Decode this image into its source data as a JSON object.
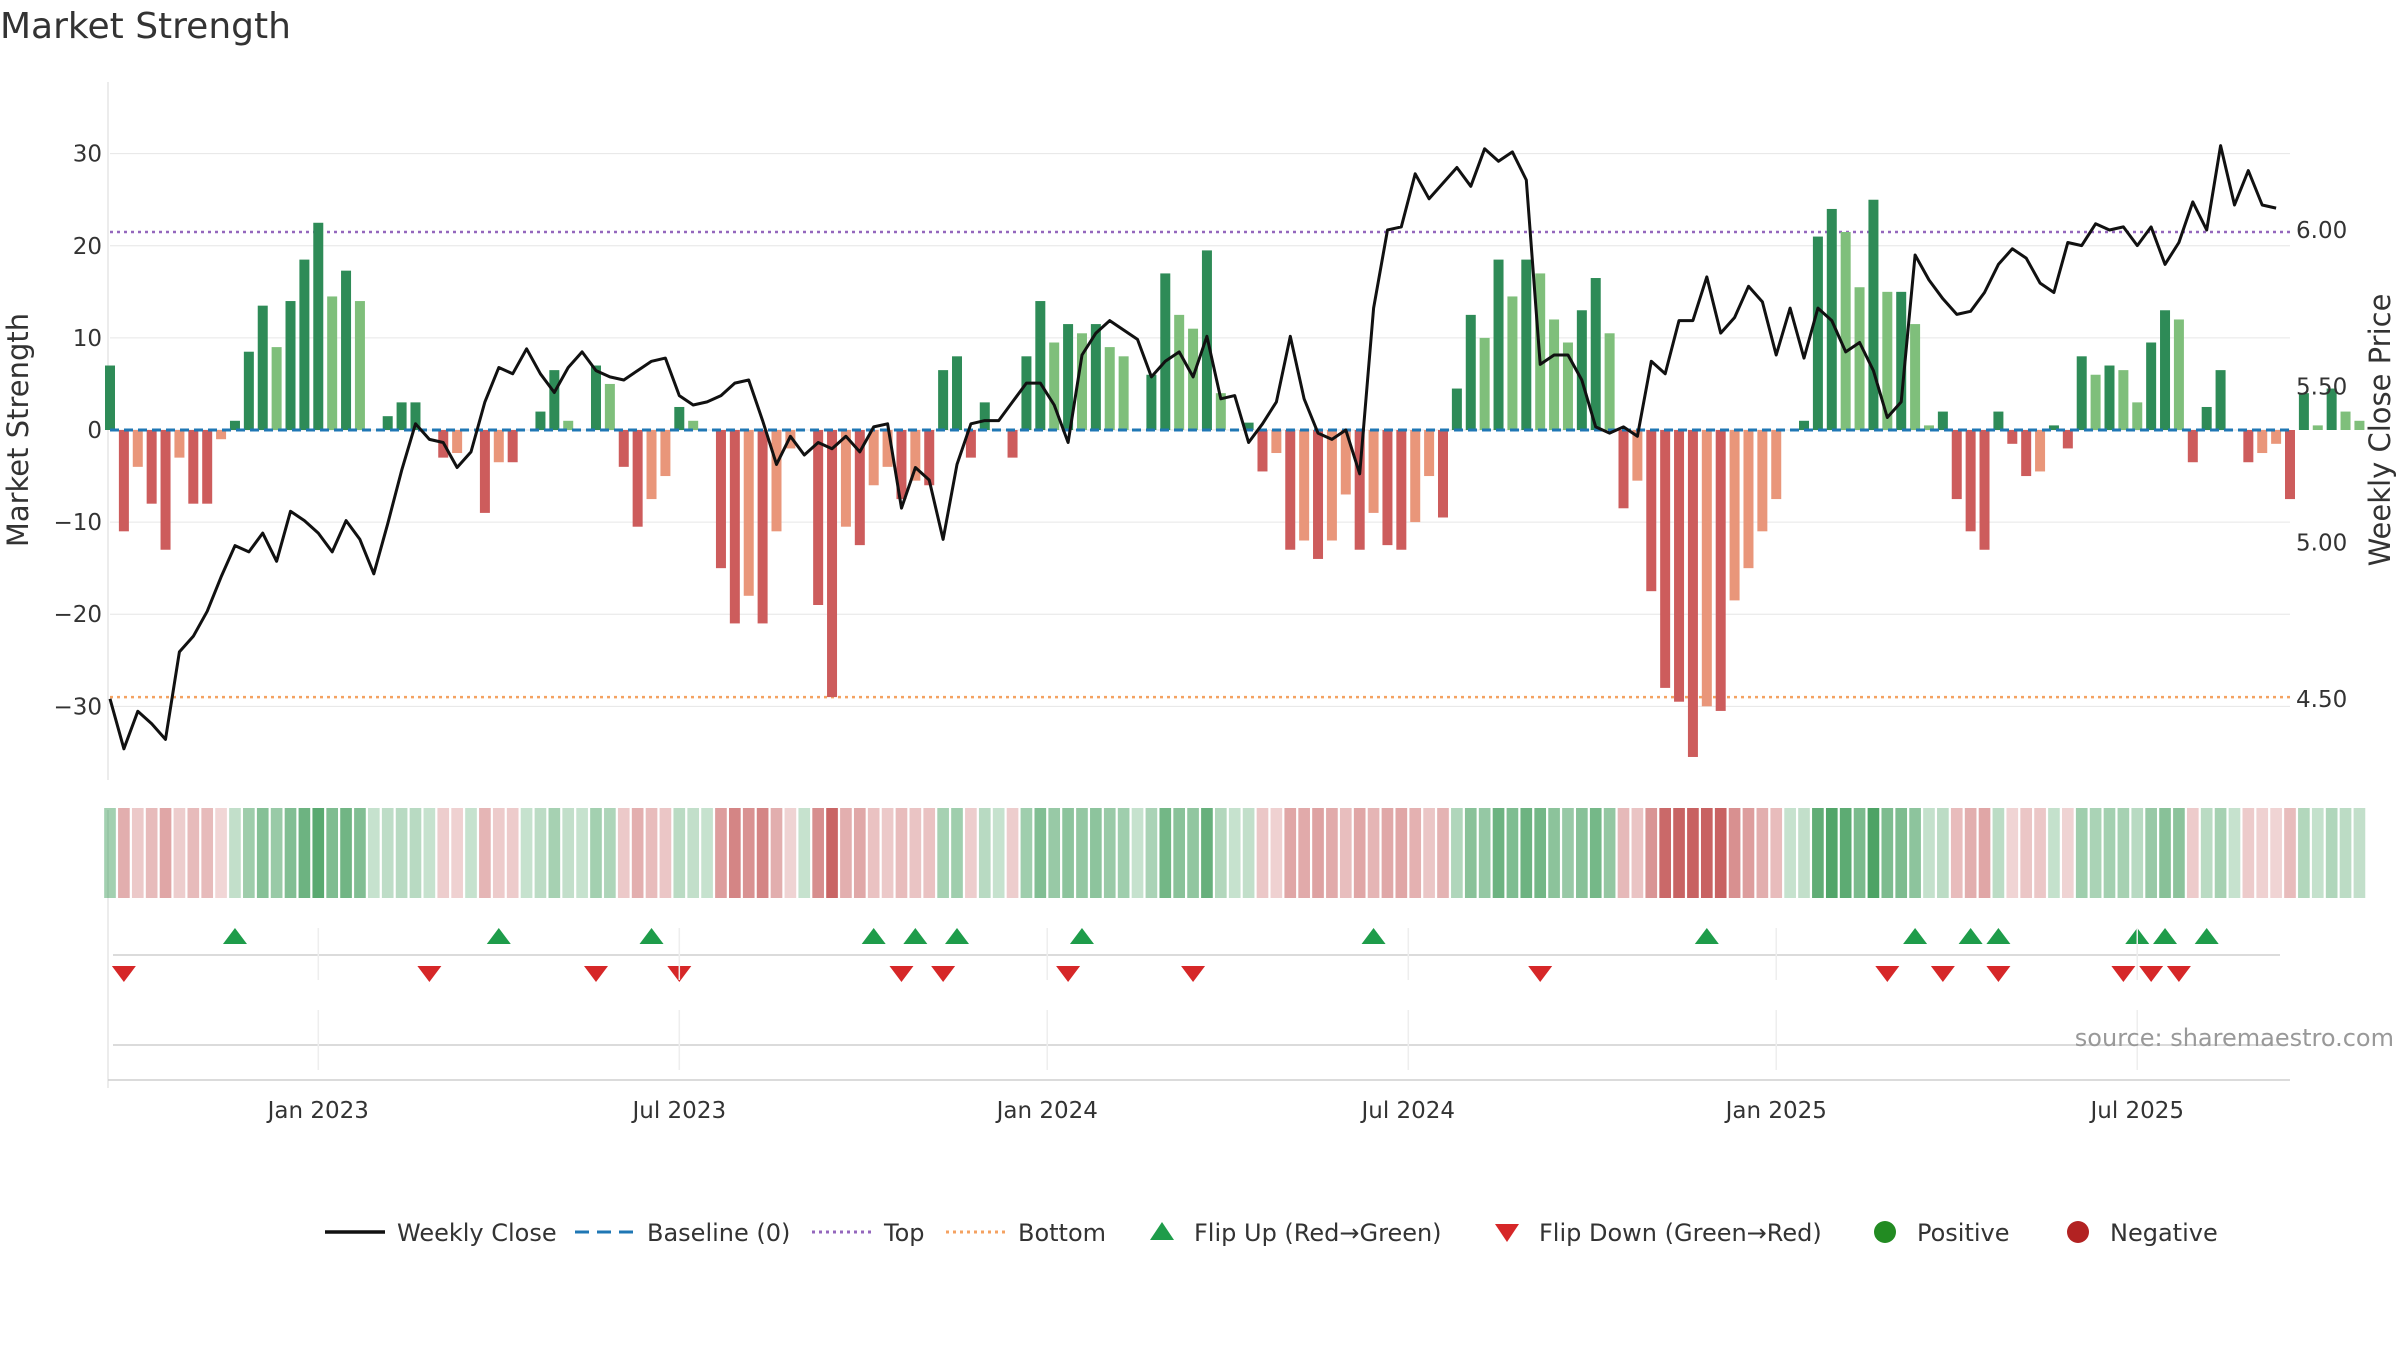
{
  "chart_data": {
    "type": "bar",
    "title": "Market Strength",
    "ylabel_left": "Market Strength",
    "ylabel_right": "Weekly Close Price",
    "ylim_left": [
      -38,
      38
    ],
    "ylim_right": [
      4.24,
      6.48
    ],
    "yticks_left": [
      30,
      20,
      10,
      0,
      -10,
      -20,
      -30
    ],
    "yticks_left_labels": [
      "30",
      "20",
      "10",
      "0",
      "−10",
      "−20",
      "−30"
    ],
    "yticks_right": [
      6.0,
      5.5,
      5.0,
      4.5
    ],
    "yticks_right_labels": [
      "6.00",
      "5.50",
      "5.00",
      "4.50"
    ],
    "top_line": 21.5,
    "bottom_line": -29,
    "x_range": [
      0,
      157
    ],
    "x_ticks": [
      {
        "week": 15,
        "label": "Jan 2023"
      },
      {
        "week": 41,
        "label": "Jul 2023"
      },
      {
        "week": 67.5,
        "label": "Jan 2024"
      },
      {
        "week": 93.5,
        "label": "Jul 2024"
      },
      {
        "week": 120,
        "label": "Jan 2025"
      },
      {
        "week": 146,
        "label": "Jul 2025"
      }
    ],
    "strength": [
      7,
      -11,
      -4,
      -8,
      -13,
      -3,
      -8,
      -8,
      -1,
      1,
      8.5,
      13.5,
      9,
      14,
      18.5,
      22.5,
      14.5,
      17.3,
      14,
      0,
      1.5,
      3,
      3,
      0,
      -3,
      -2.5,
      0,
      -9,
      -3.5,
      -3.5,
      0,
      2,
      6.5,
      1,
      0,
      7,
      5,
      -4,
      -10.5,
      -7.5,
      -5,
      2.5,
      1,
      0,
      -15,
      -21,
      -18,
      -21,
      -11,
      -2,
      0,
      -19,
      -29,
      -10.5,
      -12.5,
      -6,
      -4,
      -7.5,
      -5.5,
      -6,
      6.5,
      8,
      -3,
      3,
      0,
      -3,
      8,
      14,
      9.5,
      11.5,
      10.5,
      11.5,
      9,
      8,
      0,
      6,
      17,
      12.5,
      11,
      19.5,
      4,
      0,
      0.8,
      -4.5,
      -2.5,
      -13,
      -12,
      -14,
      -12,
      -7,
      -13,
      -9,
      -12.5,
      -13,
      -10,
      -5,
      -9.5,
      4.5,
      12.5,
      10,
      18.5,
      14.5,
      18.5,
      17,
      12,
      9.5,
      13,
      16.5,
      10.5,
      -8.5,
      -5.5,
      -17.5,
      -28,
      -29.5,
      -35.5,
      -30,
      -30.5,
      -18.5,
      -15,
      -11,
      -7.5,
      0,
      1,
      21,
      24,
      21.5,
      15.5,
      25,
      15,
      15,
      11.5,
      0.5,
      2,
      -7.5,
      -11,
      -13,
      2,
      -1.5,
      -5,
      -4.5,
      0.5,
      -2,
      8,
      6,
      7,
      6.5,
      3,
      9.5,
      13,
      12,
      -3.5,
      2.5,
      6.5,
      0,
      -3.5,
      -2.5,
      -1.5,
      -7.5,
      4,
      0.5,
      4.5,
      2,
      1
    ],
    "close": [
      4.5,
      4.34,
      4.46,
      4.42,
      4.37,
      4.65,
      4.7,
      4.78,
      4.89,
      4.99,
      4.97,
      5.03,
      4.94,
      5.1,
      5.07,
      5.03,
      4.97,
      5.07,
      5.01,
      4.9,
      5.06,
      5.23,
      5.38,
      5.33,
      5.32,
      5.24,
      5.29,
      5.45,
      5.56,
      5.54,
      5.62,
      5.54,
      5.48,
      5.56,
      5.61,
      5.55,
      5.53,
      5.52,
      5.55,
      5.58,
      5.59,
      5.47,
      5.44,
      5.45,
      5.47,
      5.51,
      5.52,
      5.39,
      5.25,
      5.34,
      5.28,
      5.32,
      5.3,
      5.34,
      5.29,
      5.37,
      5.38,
      5.11,
      5.24,
      5.2,
      5.01,
      5.25,
      5.38,
      5.39,
      5.39,
      5.45,
      5.51,
      5.51,
      5.44,
      5.32,
      5.6,
      5.67,
      5.71,
      5.68,
      5.65,
      5.53,
      5.58,
      5.61,
      5.53,
      5.66,
      5.46,
      5.47,
      5.32,
      5.38,
      5.45,
      5.66,
      5.46,
      5.35,
      5.33,
      5.36,
      5.22,
      5.75,
      6.0,
      6.01,
      6.18,
      6.1,
      6.15,
      6.2,
      6.14,
      6.26,
      6.22,
      6.25,
      6.16,
      5.57,
      5.6,
      5.6,
      5.52,
      5.37,
      5.35,
      5.37,
      5.34,
      5.58,
      5.54,
      5.71,
      5.71,
      5.85,
      5.67,
      5.72,
      5.82,
      5.77,
      5.6,
      5.75,
      5.59,
      5.75,
      5.71,
      5.61,
      5.64,
      5.55,
      5.4,
      5.45,
      5.92,
      5.84,
      5.78,
      5.73,
      5.74,
      5.8,
      5.89,
      5.94,
      5.91,
      5.83,
      5.8,
      5.96,
      5.95,
      6.02,
      6.0,
      6.01,
      5.95,
      6.01,
      5.89,
      5.96,
      6.09,
      6.0,
      6.27,
      6.08,
      6.19,
      6.08,
      6.07
    ],
    "flip_up_weeks": [
      9,
      28,
      39,
      55,
      58,
      61,
      70,
      91,
      115,
      130,
      134,
      136,
      146,
      148,
      151
    ],
    "flip_down_weeks": [
      1,
      23,
      35,
      41,
      57,
      60,
      69,
      78,
      103,
      128,
      132,
      136,
      145,
      147,
      149
    ],
    "source": "source: sharemaestro.com",
    "legend": [
      {
        "label": "Weekly Close",
        "kind": "line",
        "color": "#111111"
      },
      {
        "label": "Baseline (0)",
        "kind": "dash",
        "color": "#1f77b4"
      },
      {
        "label": "Top",
        "kind": "dot",
        "color": "#9467bd"
      },
      {
        "label": "Bottom",
        "kind": "dot",
        "color": "#f4a261"
      },
      {
        "label": "Flip Up (Red→Green)",
        "kind": "tri-up",
        "color": "#1e9c4a"
      },
      {
        "label": "Flip Down (Green→Red)",
        "kind": "tri-down",
        "color": "#d62728"
      },
      {
        "label": "Positive",
        "kind": "circle",
        "color": "#228b22"
      },
      {
        "label": "Negative",
        "kind": "circle",
        "color": "#b22222"
      }
    ],
    "colors": {
      "pos_strong": "#2e8b57",
      "pos_light": "#7fbf7b",
      "neg_strong": "#cd5c5c",
      "neg_light": "#e9967a",
      "top": "#9467bd",
      "bottom": "#f4a261",
      "baseline": "#1f77b4",
      "close": "#111111"
    }
  }
}
